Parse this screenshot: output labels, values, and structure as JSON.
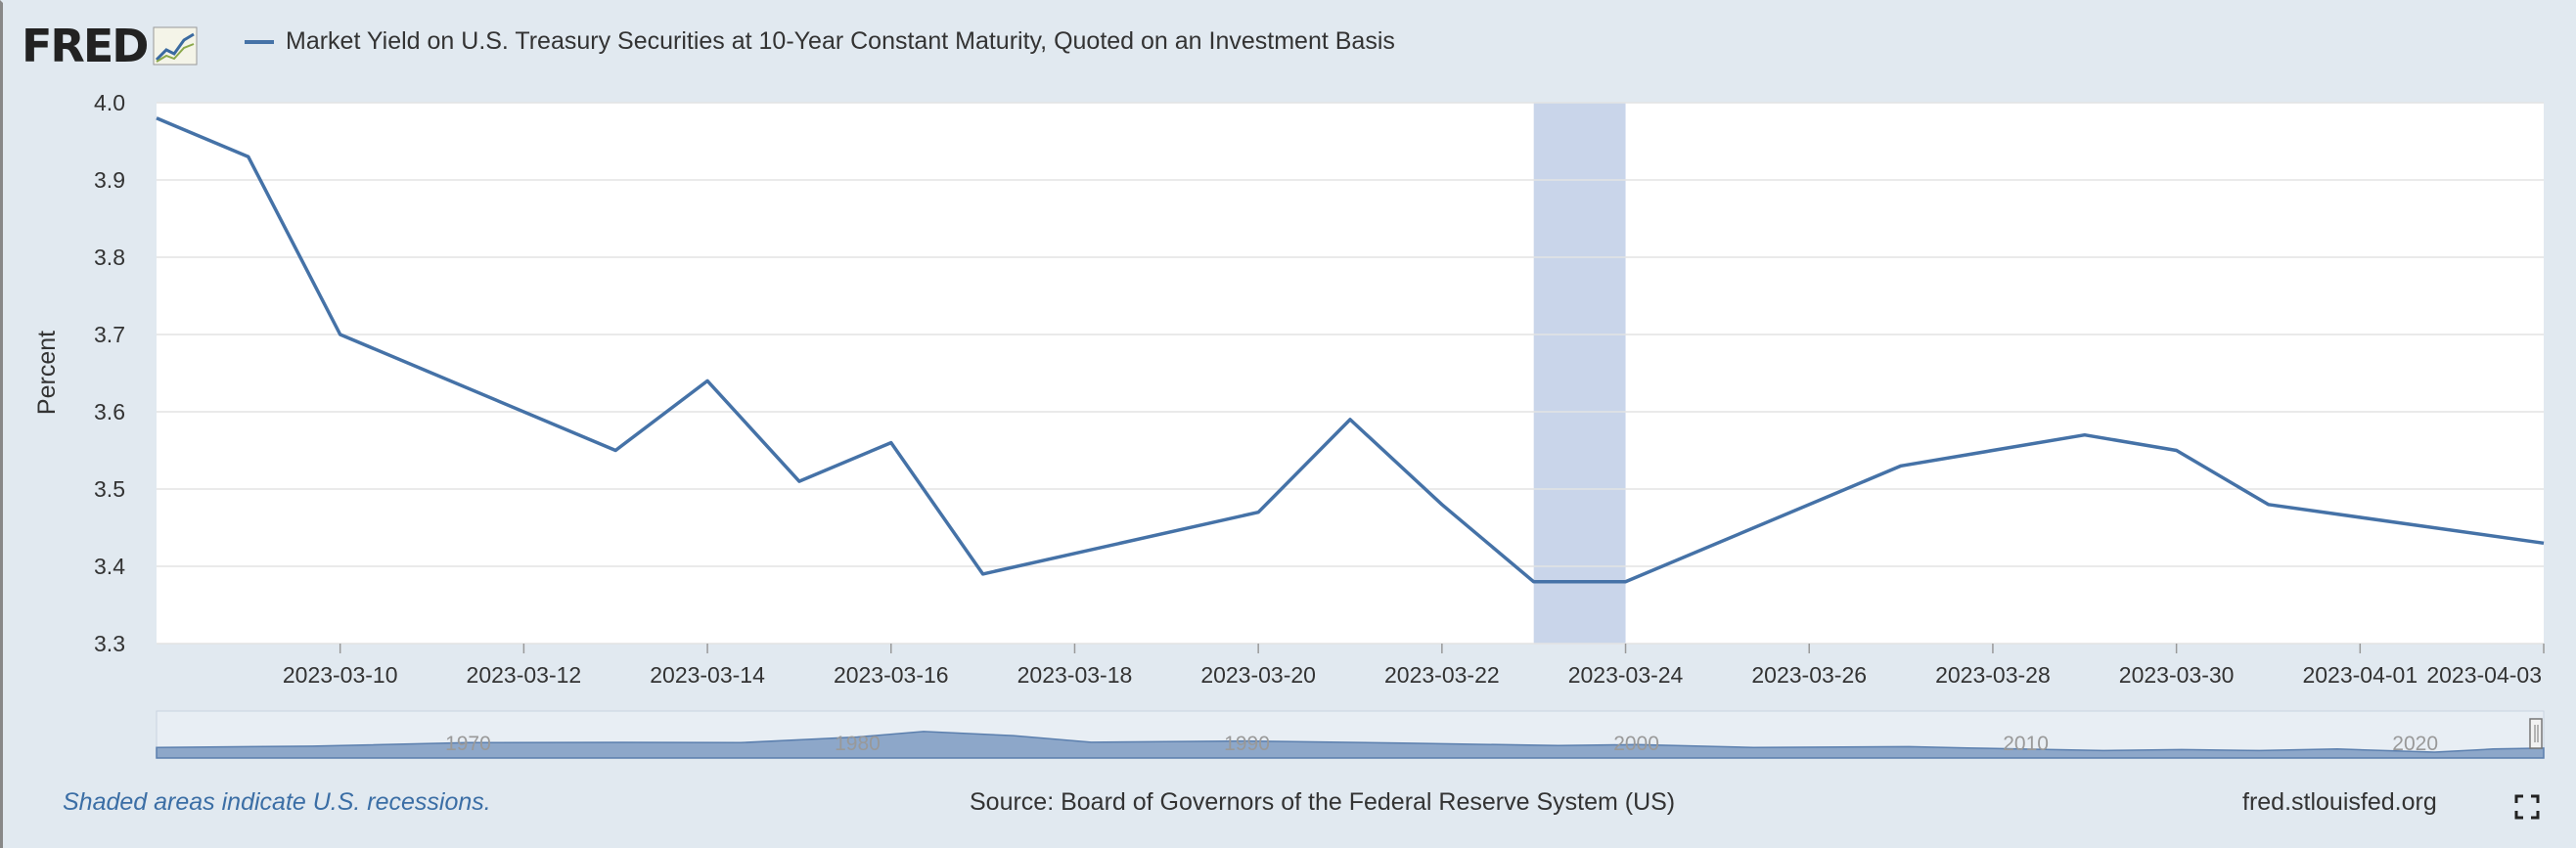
{
  "brand": {
    "logo_text": "FRED",
    "logo_icon": "chart-line-icon"
  },
  "legend": {
    "series_name": "Market Yield on U.S. Treasury Securities at 10-Year Constant Maturity, Quoted on an Investment Basis",
    "color": "#4572a7"
  },
  "footer": {
    "recession_note": "Shaded areas indicate U.S. recessions.",
    "source": "Source: Board of Governors of the Federal Reserve System (US)",
    "site": "fred.stlouisfed.org",
    "fullscreen_icon": "fullscreen-icon"
  },
  "chart_data": {
    "type": "line",
    "ylabel": "Percent",
    "ylim": [
      3.3,
      4.0
    ],
    "yticks": [
      "3.3",
      "3.4",
      "3.5",
      "3.6",
      "3.7",
      "3.8",
      "3.9",
      "4.0"
    ],
    "xlim": [
      "2023-03-08",
      "2023-04-03"
    ],
    "xticks": [
      "2023-03-10",
      "2023-03-12",
      "2023-03-14",
      "2023-03-16",
      "2023-03-18",
      "2023-03-20",
      "2023-03-22",
      "2023-03-24",
      "2023-03-26",
      "2023-03-28",
      "2023-03-30",
      "2023-04-01",
      "2023-04-03"
    ],
    "grid": true,
    "series": [
      {
        "color": "#4572a7",
        "x": [
          "2023-03-08",
          "2023-03-09",
          "2023-03-10",
          "2023-03-13",
          "2023-03-14",
          "2023-03-15",
          "2023-03-16",
          "2023-03-17",
          "2023-03-20",
          "2023-03-21",
          "2023-03-22",
          "2023-03-23",
          "2023-03-24",
          "2023-03-27",
          "2023-03-29",
          "2023-03-30",
          "2023-03-31",
          "2023-04-03"
        ],
        "values": [
          3.98,
          3.93,
          3.7,
          3.55,
          3.64,
          3.51,
          3.56,
          3.39,
          3.47,
          3.59,
          3.48,
          3.38,
          3.38,
          3.53,
          3.57,
          3.55,
          3.48,
          3.43
        ]
      }
    ],
    "recession_shading": {
      "start": "2023-03-23",
      "end": "2023-03-24",
      "color": "#c9d5ea"
    },
    "navigator": {
      "labels": [
        "1970",
        "1980",
        "1990",
        "2000",
        "2010",
        "2020"
      ],
      "fill_color": "#8da7c9"
    }
  }
}
